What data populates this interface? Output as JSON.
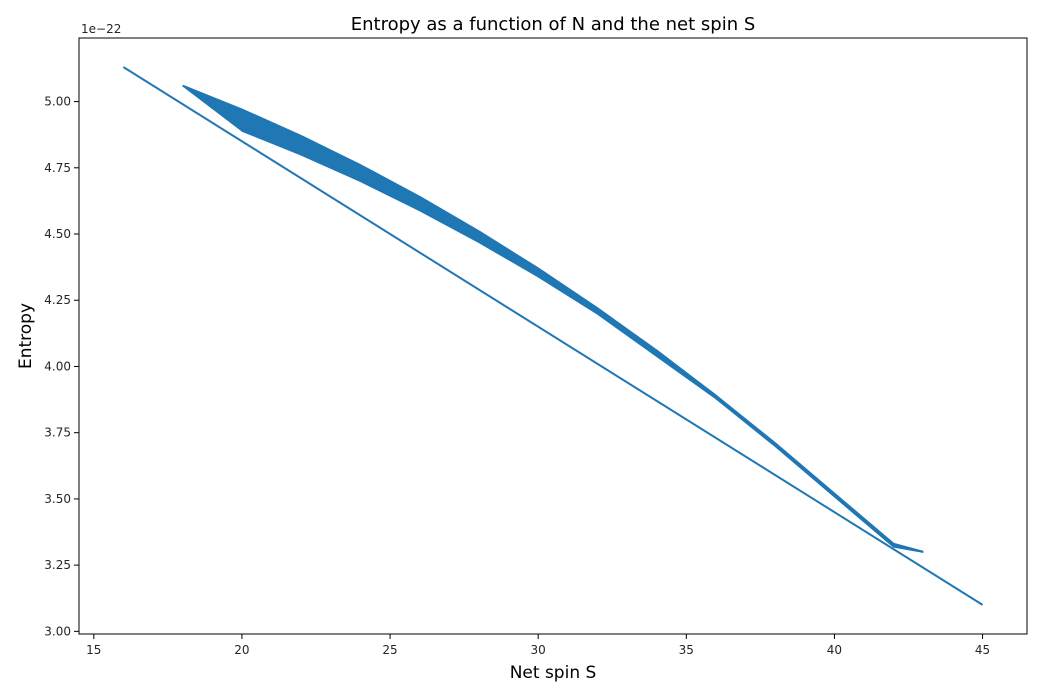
{
  "chart_data": {
    "type": "line",
    "title": "Entropy as a function of N and the net spin S",
    "xlabel": "Net spin S",
    "ylabel": "Entropy",
    "xlim": [
      14.5,
      46.5
    ],
    "ylim": [
      2.99,
      5.24
    ],
    "y_offset_label": "1e−22",
    "x_ticks": [
      15,
      20,
      25,
      30,
      35,
      40,
      45
    ],
    "y_ticks": [
      3.0,
      3.25,
      3.5,
      3.75,
      4.0,
      4.25,
      4.5,
      4.75,
      5.0
    ],
    "x_tick_labels": [
      "15",
      "20",
      "25",
      "30",
      "35",
      "40",
      "45"
    ],
    "y_tick_labels": [
      "3.00",
      "3.25",
      "3.50",
      "3.75",
      "4.00",
      "4.25",
      "4.50",
      "4.75",
      "5.00"
    ],
    "series_color": "#1f77b4",
    "grid": false,
    "series": [
      {
        "x": [
          16,
          45
        ],
        "values": [
          5.13,
          3.1
        ]
      },
      {
        "x": [
          18,
          20,
          22,
          24,
          26,
          28,
          30,
          32,
          34,
          36,
          38,
          40,
          42,
          43
        ],
        "values": [
          5.06,
          4.97,
          4.87,
          4.76,
          4.64,
          4.51,
          4.37,
          4.22,
          4.06,
          3.89,
          3.71,
          3.52,
          3.33,
          3.3
        ]
      },
      {
        "x": [
          20,
          22,
          24,
          26,
          28,
          30,
          32,
          34,
          36,
          38,
          40,
          42,
          43
        ],
        "values": [
          4.89,
          4.8,
          4.7,
          4.59,
          4.47,
          4.34,
          4.2,
          4.04,
          3.88,
          3.7,
          3.51,
          3.32,
          3.3
        ]
      }
    ]
  }
}
